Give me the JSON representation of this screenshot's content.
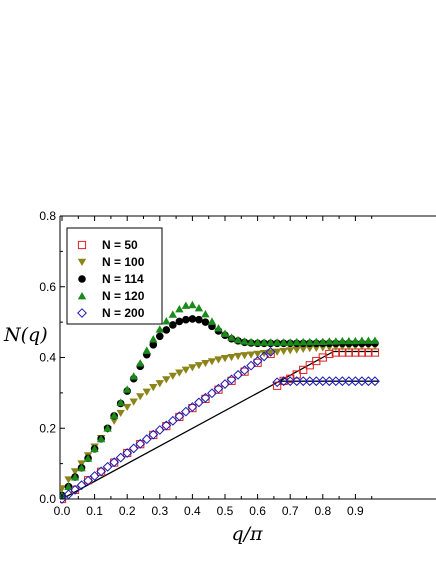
{
  "chart_data": {
    "type": "scatter",
    "title": "",
    "xlabel": "q/π",
    "ylabel": "N(q)",
    "xlim": [
      0.0,
      0.97
    ],
    "ylim": [
      0.0,
      0.8
    ],
    "xticks": [
      "0.0",
      "0.1",
      "0.2",
      "0.3",
      "0.4",
      "0.5",
      "0.6",
      "0.7",
      "0.8",
      "0.9"
    ],
    "yticks": [
      "0.0",
      "0.2",
      "0.4",
      "0.6",
      "0.8"
    ],
    "grid": false,
    "legend_position": "top-left",
    "series": [
      {
        "name": "N = 50",
        "marker": "open-square",
        "color": "#dd2222",
        "points": [
          [
            0.0,
            0.0
          ],
          [
            0.04,
            0.026
          ],
          [
            0.08,
            0.053
          ],
          [
            0.12,
            0.077
          ],
          [
            0.16,
            0.103
          ],
          [
            0.2,
            0.13
          ],
          [
            0.24,
            0.155
          ],
          [
            0.28,
            0.181
          ],
          [
            0.32,
            0.206
          ],
          [
            0.36,
            0.232
          ],
          [
            0.4,
            0.257
          ],
          [
            0.44,
            0.283
          ],
          [
            0.48,
            0.309
          ],
          [
            0.52,
            0.334
          ],
          [
            0.56,
            0.36
          ],
          [
            0.6,
            0.385
          ],
          [
            0.64,
            0.41
          ],
          [
            0.66,
            0.32
          ],
          [
            0.68,
            0.334
          ],
          [
            0.7,
            0.34
          ],
          [
            0.72,
            0.352
          ],
          [
            0.74,
            0.365
          ],
          [
            0.76,
            0.378
          ],
          [
            0.78,
            0.39
          ],
          [
            0.8,
            0.4
          ],
          [
            0.82,
            0.41
          ],
          [
            0.84,
            0.414
          ],
          [
            0.86,
            0.414
          ],
          [
            0.88,
            0.414
          ],
          [
            0.9,
            0.414
          ],
          [
            0.92,
            0.414
          ],
          [
            0.94,
            0.414
          ],
          [
            0.96,
            0.414
          ]
        ]
      },
      {
        "name": "N = 100",
        "marker": "filled-down-triangle",
        "color": "#8c8418",
        "points": [
          [
            0.0,
            0.03
          ],
          [
            0.02,
            0.055
          ],
          [
            0.04,
            0.078
          ],
          [
            0.06,
            0.1
          ],
          [
            0.08,
            0.123
          ],
          [
            0.1,
            0.148
          ],
          [
            0.12,
            0.172
          ],
          [
            0.14,
            0.197
          ],
          [
            0.16,
            0.221
          ],
          [
            0.18,
            0.243
          ],
          [
            0.2,
            0.26
          ],
          [
            0.22,
            0.275
          ],
          [
            0.24,
            0.29
          ],
          [
            0.26,
            0.303
          ],
          [
            0.28,
            0.316
          ],
          [
            0.3,
            0.327
          ],
          [
            0.32,
            0.338
          ],
          [
            0.34,
            0.348
          ],
          [
            0.36,
            0.357
          ],
          [
            0.38,
            0.365
          ],
          [
            0.4,
            0.372
          ],
          [
            0.42,
            0.378
          ],
          [
            0.44,
            0.384
          ],
          [
            0.46,
            0.389
          ],
          [
            0.48,
            0.394
          ],
          [
            0.5,
            0.398
          ],
          [
            0.52,
            0.401
          ],
          [
            0.54,
            0.404
          ],
          [
            0.56,
            0.406
          ],
          [
            0.58,
            0.408
          ],
          [
            0.6,
            0.41
          ],
          [
            0.62,
            0.412
          ],
          [
            0.64,
            0.414
          ],
          [
            0.66,
            0.416
          ],
          [
            0.68,
            0.418
          ],
          [
            0.7,
            0.42
          ],
          [
            0.72,
            0.422
          ],
          [
            0.74,
            0.424
          ],
          [
            0.76,
            0.426
          ],
          [
            0.78,
            0.427
          ],
          [
            0.8,
            0.428
          ],
          [
            0.82,
            0.429
          ],
          [
            0.84,
            0.43
          ],
          [
            0.86,
            0.431
          ],
          [
            0.88,
            0.431
          ],
          [
            0.9,
            0.432
          ],
          [
            0.92,
            0.432
          ],
          [
            0.94,
            0.433
          ],
          [
            0.96,
            0.433
          ]
        ]
      },
      {
        "name": "N = 114",
        "marker": "filled-circle",
        "color": "#000000",
        "points": [
          [
            0.0,
            0.01
          ],
          [
            0.02,
            0.035
          ],
          [
            0.04,
            0.062
          ],
          [
            0.06,
            0.088
          ],
          [
            0.08,
            0.115
          ],
          [
            0.1,
            0.142
          ],
          [
            0.12,
            0.17
          ],
          [
            0.14,
            0.2
          ],
          [
            0.16,
            0.235
          ],
          [
            0.18,
            0.27
          ],
          [
            0.2,
            0.305
          ],
          [
            0.22,
            0.34
          ],
          [
            0.24,
            0.375
          ],
          [
            0.26,
            0.408
          ],
          [
            0.28,
            0.436
          ],
          [
            0.3,
            0.46
          ],
          [
            0.32,
            0.478
          ],
          [
            0.34,
            0.492
          ],
          [
            0.36,
            0.502
          ],
          [
            0.38,
            0.507
          ],
          [
            0.4,
            0.509
          ],
          [
            0.42,
            0.507
          ],
          [
            0.44,
            0.5
          ],
          [
            0.46,
            0.488
          ],
          [
            0.48,
            0.475
          ],
          [
            0.5,
            0.463
          ],
          [
            0.52,
            0.453
          ],
          [
            0.54,
            0.447
          ],
          [
            0.56,
            0.443
          ],
          [
            0.58,
            0.441
          ],
          [
            0.6,
            0.44
          ],
          [
            0.62,
            0.44
          ],
          [
            0.64,
            0.44
          ],
          [
            0.66,
            0.44
          ],
          [
            0.68,
            0.44
          ],
          [
            0.7,
            0.44
          ],
          [
            0.72,
            0.44
          ],
          [
            0.74,
            0.44
          ],
          [
            0.76,
            0.44
          ],
          [
            0.78,
            0.44
          ],
          [
            0.8,
            0.44
          ],
          [
            0.82,
            0.44
          ],
          [
            0.84,
            0.44
          ],
          [
            0.86,
            0.44
          ],
          [
            0.88,
            0.44
          ],
          [
            0.9,
            0.44
          ],
          [
            0.92,
            0.44
          ],
          [
            0.94,
            0.44
          ],
          [
            0.96,
            0.44
          ]
        ]
      },
      {
        "name": "N = 120",
        "marker": "filled-up-triangle",
        "color": "#1a8a1a",
        "points": [
          [
            0.0,
            0.01
          ],
          [
            0.02,
            0.035
          ],
          [
            0.04,
            0.062
          ],
          [
            0.06,
            0.088
          ],
          [
            0.08,
            0.115
          ],
          [
            0.1,
            0.142
          ],
          [
            0.12,
            0.17
          ],
          [
            0.14,
            0.2
          ],
          [
            0.16,
            0.236
          ],
          [
            0.18,
            0.273
          ],
          [
            0.2,
            0.31
          ],
          [
            0.22,
            0.347
          ],
          [
            0.24,
            0.384
          ],
          [
            0.26,
            0.42
          ],
          [
            0.28,
            0.452
          ],
          [
            0.3,
            0.48
          ],
          [
            0.32,
            0.503
          ],
          [
            0.34,
            0.522
          ],
          [
            0.36,
            0.537
          ],
          [
            0.38,
            0.547
          ],
          [
            0.4,
            0.549
          ],
          [
            0.42,
            0.54
          ],
          [
            0.44,
            0.523
          ],
          [
            0.46,
            0.502
          ],
          [
            0.48,
            0.483
          ],
          [
            0.5,
            0.468
          ],
          [
            0.52,
            0.457
          ],
          [
            0.54,
            0.45
          ],
          [
            0.56,
            0.446
          ],
          [
            0.58,
            0.444
          ],
          [
            0.6,
            0.443
          ],
          [
            0.62,
            0.443
          ],
          [
            0.64,
            0.443
          ],
          [
            0.66,
            0.443
          ],
          [
            0.68,
            0.443
          ],
          [
            0.7,
            0.443
          ],
          [
            0.72,
            0.444
          ],
          [
            0.74,
            0.444
          ],
          [
            0.76,
            0.444
          ],
          [
            0.78,
            0.445
          ],
          [
            0.8,
            0.445
          ],
          [
            0.82,
            0.446
          ],
          [
            0.84,
            0.446
          ],
          [
            0.86,
            0.447
          ],
          [
            0.88,
            0.447
          ],
          [
            0.9,
            0.447
          ],
          [
            0.92,
            0.448
          ],
          [
            0.94,
            0.448
          ],
          [
            0.96,
            0.448
          ]
        ]
      },
      {
        "name": "N =  200",
        "marker": "open-diamond",
        "color": "#1a1ab4",
        "points": [
          [
            0.0,
            0.0
          ],
          [
            0.02,
            0.013
          ],
          [
            0.04,
            0.026
          ],
          [
            0.06,
            0.039
          ],
          [
            0.08,
            0.052
          ],
          [
            0.1,
            0.065
          ],
          [
            0.12,
            0.078
          ],
          [
            0.14,
            0.091
          ],
          [
            0.16,
            0.104
          ],
          [
            0.18,
            0.117
          ],
          [
            0.2,
            0.13
          ],
          [
            0.22,
            0.143
          ],
          [
            0.24,
            0.156
          ],
          [
            0.26,
            0.169
          ],
          [
            0.28,
            0.182
          ],
          [
            0.3,
            0.195
          ],
          [
            0.32,
            0.208
          ],
          [
            0.34,
            0.221
          ],
          [
            0.36,
            0.234
          ],
          [
            0.38,
            0.247
          ],
          [
            0.4,
            0.26
          ],
          [
            0.42,
            0.273
          ],
          [
            0.44,
            0.286
          ],
          [
            0.46,
            0.299
          ],
          [
            0.48,
            0.312
          ],
          [
            0.5,
            0.325
          ],
          [
            0.52,
            0.338
          ],
          [
            0.54,
            0.351
          ],
          [
            0.56,
            0.364
          ],
          [
            0.58,
            0.377
          ],
          [
            0.6,
            0.39
          ],
          [
            0.62,
            0.403
          ],
          [
            0.64,
            0.416
          ],
          [
            0.66,
            0.33
          ],
          [
            0.68,
            0.333
          ],
          [
            0.7,
            0.333
          ],
          [
            0.72,
            0.333
          ],
          [
            0.74,
            0.333
          ],
          [
            0.76,
            0.333
          ],
          [
            0.78,
            0.333
          ],
          [
            0.8,
            0.333
          ],
          [
            0.82,
            0.333
          ],
          [
            0.84,
            0.333
          ],
          [
            0.86,
            0.333
          ],
          [
            0.88,
            0.333
          ],
          [
            0.9,
            0.333
          ],
          [
            0.92,
            0.333
          ],
          [
            0.94,
            0.333
          ],
          [
            0.96,
            0.333
          ]
        ]
      }
    ],
    "reference_lines": [
      {
        "color": "#000000",
        "points": [
          [
            0.0,
            0.0
          ],
          [
            0.667,
            0.333
          ],
          [
            0.97,
            0.333
          ]
        ]
      },
      {
        "color": "#000000",
        "points": [
          [
            0.667,
            0.333
          ],
          [
            0.833,
            0.417
          ],
          [
            0.97,
            0.417
          ]
        ]
      }
    ]
  }
}
